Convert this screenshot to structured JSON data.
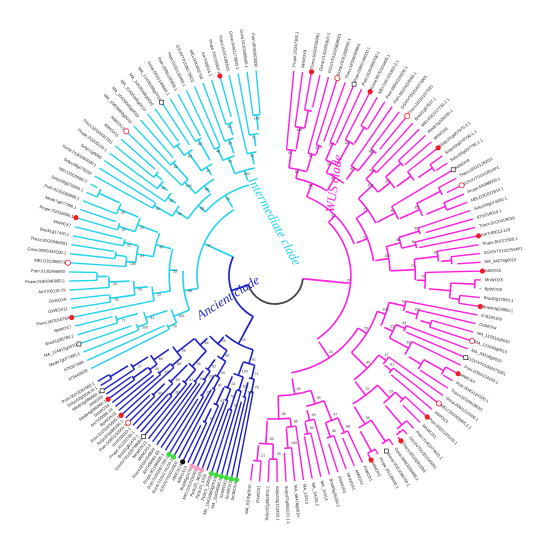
{
  "clades": {
    "intermediate": {
      "label": "Intermediate clade",
      "color": "#22d3ee"
    },
    "ancient": {
      "label": "Ancient clade",
      "color": "#1d1fc7"
    },
    "wus": {
      "label": "WUS clade",
      "color": "#ff1fe0"
    },
    "root_color": "#444444"
  },
  "markers": {
    "red_dot": "#ee1c24",
    "green_dot": "#3ddc3d",
    "pink_dot": "#f49ac1",
    "black_dot": "#111111",
    "open_circle": "#ee1c24",
    "open_square": "#222222"
  },
  "leaves": {
    "wus": [
      "Prupe.2G247300.1",
      "MnWOX9",
      "Thecc1EG025930t1",
      "Gorai.013G091800.1",
      "GSVIVT01025898001",
      "Gorai.010G198500.1",
      "Thecc1EG003090t1",
      "Potri.008G149000.1",
      "Potri.010G088700.1",
      "Gorai.007G310400.1",
      "MELO3C021900.2.1",
      "Potri.005G233200.1",
      "Potri.002G018500.1",
      "GSVIVT01016373001",
      "Thecc1EG010730t1",
      "Bradi1g67637.1",
      "MELO3C017730.2.1",
      "Medtr1g106150.1",
      "MtWOX9",
      "Solyc01g067970.2.1",
      "Solyc02g070790.1.1",
      "Solyc05g007790.1.1",
      "AtWOX9",
      "Thecc1EG012920t1",
      "GSVIVT01022514P1",
      "Prupe.6G088000.1",
      "MELO3C021814.1",
      "Solyc04g074060.1",
      "AT3G18010.1",
      "Thecc1EG041963t1",
      "AmTr00013.118",
      "Prupe.8G072300.1",
      "GSVIVT01022514P1",
      "MA_94279g0010",
      "AtWOX5",
      "MnWOX5",
      "BpWOX5",
      "Bradi2g37650.1",
      "Brads4g24080.1",
      "678330169",
      "OsWOX4",
      "MA_115514g0010",
      "MA_121643g0010",
      "MA_33318g0010",
      "GSVIVT01002575001",
      "Potri.005G124100.1",
      "AtWOX4",
      "Potri.004G124100.1",
      "Thecc1EG041963t1",
      "Gorai.006G214100.1",
      "MELO3C003065.2.1",
      "AtWOX3",
      "Potri.002G155100.1",
      "MnWOX1",
      "Potri.014G074500.1",
      "GSVIVT01001545001",
      "Thecc1EG029130t1",
      "Gorai.009G036400.1",
      "Gorai.002G098700.1",
      "Prupe.3G138400.1",
      "AtWOX1",
      "PrWOX1",
      "AtWOX1",
      "MnWOX1",
      "OsWOX3",
      "Bradi3g35150.1",
      "MA_10313",
      "MA_10033.2",
      "MA_10313",
      "MA_56478g0010",
      "Solyc07g065120.1.1",
      "Solyc03g123450.1",
      "Solyc02g082670.1",
      "OsWOX1",
      "MA_9102g0010"
    ],
    "ancient": [
      "SmWOX3",
      "SmWOX2",
      "SmWOX1",
      "MA_10434990.1",
      "MA_10434990g0010",
      "Pp3c3_10050",
      "Pp3c20_3700",
      "Pp3c20_3620",
      "MELO3C015040",
      "Bradi5g1470",
      "AtWOX13",
      "AtWOX14",
      "GSVIVT01019300",
      "Gorai.010G174100.1",
      "Potri.010G087700.1",
      "Prupe.8G196600.1",
      "AmTr00061.95",
      "Thecc1EG015480t1",
      "MtWOX13",
      "MnWOX13",
      "GSVIVT01026798001",
      "Bradi1g61470.1",
      "Prupe.4G225700.1",
      "AmTr00010.1",
      "Potri.008G150000.1",
      "Solyc02g086160.1",
      "Potri.012G025600.1",
      "BpWOX13",
      "AmTr00098.14",
      "SmWOX4",
      "Medtr4g086860.1",
      "AtWOX8",
      "Medtr4g086860.1",
      "Solyc02g082670.1",
      "Potri.001G091500.1"
    ],
    "intermediate": [
      "678440829",
      "678367498",
      "Medtr7g077390.1",
      "MA_124915g0010",
      "Bradi1g36780.2",
      "BpWOX7",
      "Thecc1EG016760",
      "OsWOX11",
      "OsWOX9",
      "AmTr00119.79",
      "Prupe.019G040800.1",
      "Potri.013G066900",
      "MELO3C009673",
      "Gorai.009G346200.1",
      "Thecc1EG034560t1",
      "Bradi1g17420.1",
      "MnWOX7",
      "Prupe.7G016600.1",
      "Medtr7g077390.1",
      "Potri.013G066900.1",
      "Solyc08g076000.1",
      "MELO3C009677",
      "Solyc08g075550",
      "Gorai.013G050000.1",
      "Solyc1g0080",
      "Prupe.2G005100.1",
      "Thecc1EG033570t1",
      "AtWOX11",
      "AtWOX12",
      "MA_10429983g0010",
      "MA_10430045g0010",
      "MA_10435345g0010",
      "MA_10435348g0010",
      "MA_10426099g0010",
      "Gorai.001G140500.1",
      "Potri.008G100800.1",
      "Potri.010G135900.1",
      "GSVIVT01036178001",
      "MELO3C002750",
      "AmTr00014.1",
      "Prupe.7G015900.1",
      "Thecc1EG018830t1",
      "Gorai.004G173900.1",
      "Gorai.013G099500.1",
      "Potri.003G063300"
    ]
  },
  "bootstrap": {
    "internal": [
      "100",
      "61",
      "47",
      "29",
      "50",
      "37",
      "45",
      "52",
      "86",
      "60",
      "47",
      "83",
      "99",
      "35",
      "100",
      "85",
      "30",
      "27",
      "65",
      "38",
      "46",
      "20",
      "29",
      "79",
      "100",
      "71",
      "91",
      "100",
      "78",
      "34",
      "63",
      "22"
    ]
  }
}
